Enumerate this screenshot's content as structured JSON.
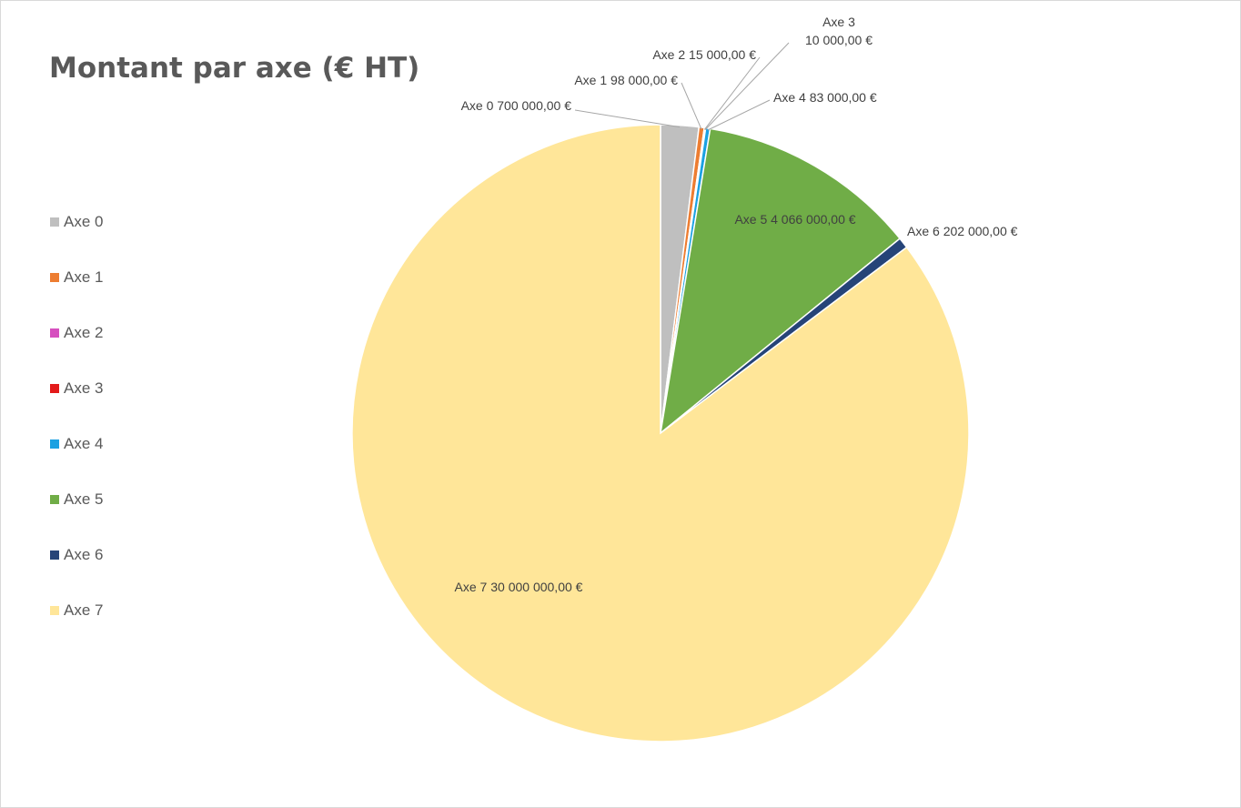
{
  "chart_data": {
    "type": "pie",
    "title": "Montant par axe (€ HT)",
    "legend_position": "left",
    "start_angle_deg": 0,
    "direction": "clockwise",
    "slices": [
      {
        "name": "Axe 0",
        "value": 700000,
        "label": "700 000,00 €",
        "color": "#bfbfbf"
      },
      {
        "name": "Axe 1",
        "value": 98000,
        "label": "98 000,00 €",
        "color": "#ed7d31"
      },
      {
        "name": "Axe 2",
        "value": 15000,
        "label": "15 000,00 €",
        "color": "#d64fbf"
      },
      {
        "name": "Axe 3",
        "value": 10000,
        "label": "10 000,00 €",
        "color": "#e31a1a"
      },
      {
        "name": "Axe 4",
        "value": 83000,
        "label": "83 000,00 €",
        "color": "#1ba1e2"
      },
      {
        "name": "Axe 5",
        "value": 4066000,
        "label": "4 066 000,00 €",
        "color": "#70ad47"
      },
      {
        "name": "Axe 6",
        "value": 202000,
        "label": "202 000,00 €",
        "color": "#264478"
      },
      {
        "name": "Axe 7",
        "value": 30000000,
        "label": "30 000 000,00 €",
        "color": "#ffe699"
      }
    ]
  }
}
